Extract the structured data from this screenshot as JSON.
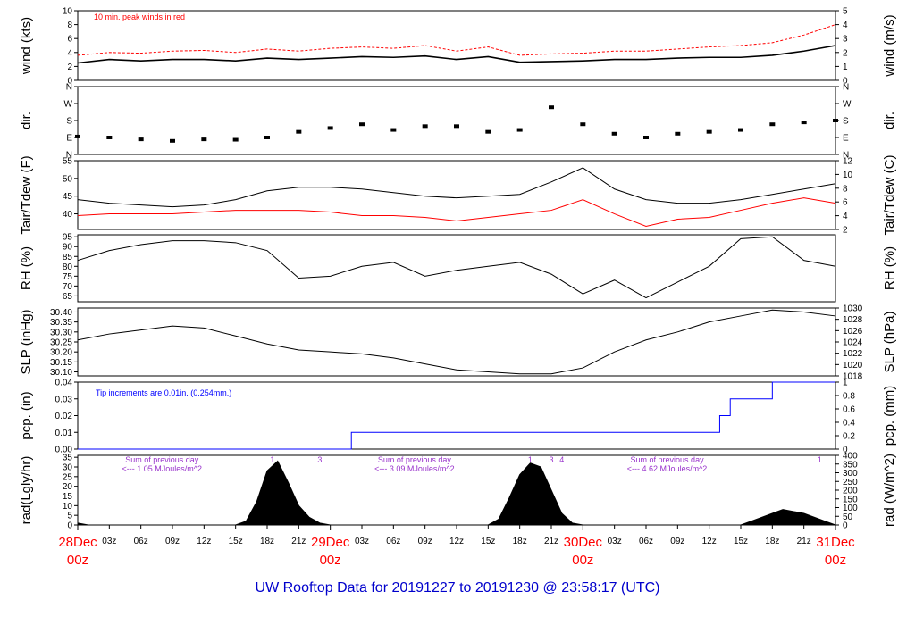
{
  "footer_title": "UW Rooftop Data for 20191227  to  20191230 @ 23:58:17  (UTC)",
  "colors": {
    "black": "#000000",
    "red": "#ff0000",
    "blue": "#0000ff",
    "purple": "#9933cc",
    "title_blue": "#0000cc"
  },
  "x_axis": {
    "hour_labels": [
      "03z",
      "06z",
      "09z",
      "12z",
      "15z",
      "18z",
      "21z",
      "03z",
      "06z",
      "09z",
      "12z",
      "15z",
      "18z",
      "21z",
      "03z",
      "06z",
      "09z",
      "12z",
      "15z",
      "18z",
      "21z"
    ],
    "hour_values": [
      3,
      6,
      9,
      12,
      15,
      18,
      21,
      27,
      30,
      33,
      36,
      39,
      42,
      45,
      51,
      54,
      57,
      60,
      63,
      66,
      69
    ],
    "day_labels": [
      {
        "day": "28Dec",
        "hour": "00z",
        "x": 0
      },
      {
        "day": "29Dec",
        "hour": "00z",
        "x": 24
      },
      {
        "day": "30Dec",
        "hour": "00z",
        "x": 48
      },
      {
        "day": "31Dec",
        "hour": "00z",
        "x": 72
      }
    ],
    "xlim": [
      0,
      72
    ]
  },
  "chart_data": [
    {
      "type": "line",
      "id": "wind",
      "ylabel": "wind (kts)",
      "ylabel_right": "wind (m/s)",
      "ylim": [
        0,
        10
      ],
      "yticks": [
        0,
        2,
        4,
        6,
        8,
        10
      ],
      "right_ylim_units": [
        0,
        5.14
      ],
      "right_ticks": [
        0,
        1,
        2,
        3,
        4,
        5
      ],
      "annotation": "10 min. peak winds in red",
      "x": [
        0,
        3,
        6,
        9,
        12,
        15,
        18,
        21,
        24,
        27,
        30,
        33,
        36,
        39,
        42,
        45,
        48,
        51,
        54,
        57,
        60,
        63,
        66,
        69,
        72
      ],
      "series": [
        {
          "values": [
            2.5,
            3.0,
            2.8,
            3.0,
            3.0,
            2.8,
            3.2,
            3.0,
            3.2,
            3.4,
            3.3,
            3.5,
            3.0,
            3.4,
            2.6,
            2.7,
            2.8,
            3.0,
            3.0,
            3.2,
            3.3,
            3.3,
            3.6,
            4.2,
            5.0
          ]
        },
        {
          "values": [
            3.6,
            4.0,
            3.9,
            4.2,
            4.3,
            4.0,
            4.5,
            4.2,
            4.6,
            4.8,
            4.6,
            5.0,
            4.2,
            4.8,
            3.6,
            3.8,
            3.9,
            4.2,
            4.2,
            4.5,
            4.8,
            5.0,
            5.4,
            6.5,
            8.0
          ]
        }
      ]
    },
    {
      "type": "scatter",
      "id": "dir",
      "ylabel": "dir.",
      "ylabel_right": "dir.",
      "ylim": [
        0,
        360
      ],
      "ytick_labels": [
        "N",
        "E",
        "S",
        "W",
        "N"
      ],
      "ytick_values": [
        0,
        90,
        180,
        270,
        360
      ],
      "x": [
        0,
        3,
        6,
        9,
        12,
        15,
        18,
        21,
        24,
        27,
        30,
        33,
        36,
        39,
        42,
        45,
        48,
        51,
        54,
        57,
        60,
        63,
        66,
        69,
        72
      ],
      "values": [
        95,
        90,
        80,
        72,
        80,
        78,
        90,
        120,
        140,
        160,
        130,
        150,
        150,
        120,
        130,
        250,
        160,
        110,
        90,
        110,
        120,
        130,
        160,
        170,
        180
      ]
    },
    {
      "type": "line",
      "id": "temp",
      "ylabel": "Tair/Tdew (F)",
      "ylabel_right": "Tair/Tdew (C)",
      "ylim": [
        35.6,
        55
      ],
      "yticks": [
        40,
        45,
        50,
        55
      ],
      "right_ticks": [
        2,
        4,
        6,
        8,
        10,
        12
      ],
      "x": [
        0,
        3,
        6,
        9,
        12,
        15,
        18,
        21,
        24,
        27,
        30,
        33,
        36,
        39,
        42,
        45,
        48,
        51,
        54,
        57,
        60,
        63,
        66,
        69,
        72
      ],
      "series": [
        {
          "name": "Tair",
          "values": [
            44,
            43,
            42.5,
            42,
            42.5,
            44,
            46.5,
            47.5,
            47.5,
            47,
            46,
            45,
            44.5,
            45,
            45.5,
            49,
            53,
            47,
            44,
            43,
            43,
            44,
            45.5,
            47,
            48.5
          ]
        },
        {
          "name": "Tdew",
          "values": [
            39.5,
            40,
            40,
            40,
            40.5,
            41,
            41,
            41,
            40.5,
            39.5,
            39.5,
            39,
            38,
            39,
            40,
            41,
            44,
            40,
            36.5,
            38.5,
            39,
            41,
            43,
            44.5,
            43
          ]
        }
      ]
    },
    {
      "type": "line",
      "id": "rh",
      "ylabel": "RH (%)",
      "ylabel_right": "RH (%)",
      "ylim": [
        62,
        96
      ],
      "yticks": [
        65,
        70,
        75,
        80,
        85,
        90,
        95
      ],
      "x": [
        0,
        3,
        6,
        9,
        12,
        15,
        18,
        21,
        24,
        27,
        30,
        33,
        36,
        39,
        42,
        45,
        48,
        51,
        54,
        57,
        60,
        63,
        66,
        69,
        72
      ],
      "values": [
        83,
        88,
        91,
        93,
        93,
        92,
        88,
        74,
        75,
        80,
        82,
        75,
        78,
        80,
        82,
        76,
        66,
        73,
        64,
        72,
        80,
        94,
        95,
        83,
        80
      ]
    },
    {
      "type": "line",
      "id": "slp",
      "ylabel": "SLP (inHg)",
      "ylabel_right": "SLP (hPa)",
      "ylim": [
        30.08,
        30.42
      ],
      "yticks": [
        30.1,
        30.15,
        30.2,
        30.25,
        30.3,
        30.35,
        30.4
      ],
      "right_ticks": [
        1018,
        1020,
        1022,
        1024,
        1026,
        1028,
        1030
      ],
      "x": [
        0,
        3,
        6,
        9,
        12,
        15,
        18,
        21,
        24,
        27,
        30,
        33,
        36,
        39,
        42,
        45,
        48,
        51,
        54,
        57,
        60,
        63,
        66,
        69,
        72
      ],
      "values": [
        30.26,
        30.29,
        30.31,
        30.33,
        30.32,
        30.28,
        30.24,
        30.21,
        30.2,
        30.19,
        30.17,
        30.14,
        30.11,
        30.1,
        30.09,
        30.09,
        30.12,
        30.2,
        30.26,
        30.3,
        30.35,
        30.38,
        30.41,
        30.4,
        30.38
      ]
    },
    {
      "type": "line",
      "id": "pcp",
      "ylabel": "pcp. (in)",
      "ylabel_right": "pcp. (mm)",
      "ylim": [
        0,
        0.04
      ],
      "yticks": [
        0.0,
        0.01,
        0.02,
        0.03,
        0.04
      ],
      "right_ticks": [
        0,
        0.2,
        0.4,
        0.6,
        0.8,
        1
      ],
      "annotation": "Tip increments are 0.01in. (0.254mm.)",
      "x": [
        0,
        26,
        26,
        61,
        61,
        62,
        62,
        66,
        66,
        72
      ],
      "values": [
        0,
        0,
        0.01,
        0.01,
        0.02,
        0.02,
        0.03,
        0.03,
        0.04,
        0.04
      ]
    },
    {
      "type": "area",
      "id": "rad",
      "ylabel": "rad(Lgly/hr)",
      "ylabel_right": "rad (W/m^2)",
      "ylim": [
        0,
        36
      ],
      "yticks": [
        0,
        5,
        10,
        15,
        20,
        25,
        30,
        35
      ],
      "right_ticks": [
        0,
        50,
        100,
        150,
        200,
        250,
        300,
        350,
        400
      ],
      "x": [
        0,
        1,
        15,
        16,
        17,
        18,
        19,
        20,
        21,
        22,
        23,
        24,
        39,
        40,
        41,
        42,
        43,
        44,
        45,
        46,
        47,
        48,
        63,
        64,
        65,
        66,
        67,
        68,
        69,
        70,
        71,
        72
      ],
      "values": [
        1,
        0,
        0,
        2,
        12,
        28,
        33,
        22,
        10,
        4,
        1,
        0,
        0,
        3,
        14,
        26,
        32,
        30,
        18,
        6,
        1,
        0,
        0,
        2,
        4,
        6,
        8,
        7,
        6,
        4,
        2,
        0
      ],
      "day_notes": [
        {
          "line1": "Sum of previous day",
          "line2": "<--- 1.05 MJoules/m^2",
          "x": 8
        },
        {
          "line1": "Sum of previous day",
          "line2": "<--- 3.09 MJoules/m^2",
          "x": 32
        },
        {
          "line1": "Sum of previous day",
          "line2": "<--- 4.62 MJoules/m^2",
          "x": 56
        }
      ],
      "markers": [
        {
          "label": "1",
          "x": 18.5
        },
        {
          "label": "3",
          "x": 23
        },
        {
          "label": "1",
          "x": 43
        },
        {
          "label": "3",
          "x": 45
        },
        {
          "label": "4",
          "x": 46
        },
        {
          "label": "1",
          "x": 70.5
        }
      ]
    }
  ]
}
